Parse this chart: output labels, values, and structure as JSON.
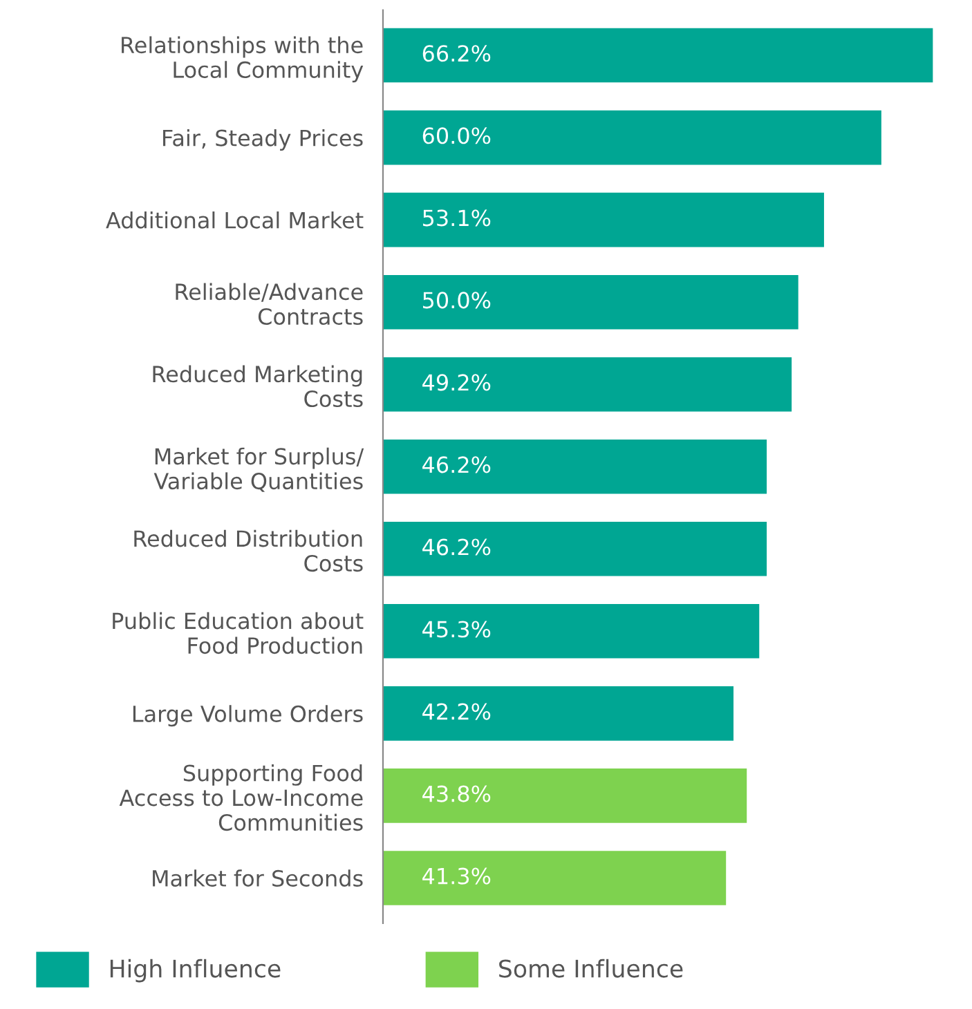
{
  "chart_data": {
    "type": "bar",
    "orientation": "horizontal",
    "categories": [
      "Relationships with the\nLocal Community",
      "Fair, Steady Prices",
      "Additional Local Market",
      "Reliable/Advance\nContracts",
      "Reduced Marketing\nCosts",
      "Market for Surplus/\nVariable Quantities",
      "Reduced Distribution\nCosts",
      "Public Education about\nFood Production",
      "Large Volume Orders",
      "Supporting Food\nAccess to Low-Income\nCommunities",
      "Market for Seconds"
    ],
    "series": [
      {
        "name": "High Influence",
        "color": "#00a693",
        "values": [
          66.2,
          60.0,
          53.1,
          50.0,
          49.2,
          46.2,
          46.2,
          45.3,
          42.2,
          null,
          null
        ],
        "value_labels": [
          "66.2%",
          "60.0%",
          "53.1%",
          "50.0%",
          "49.2%",
          "46.2%",
          "46.2%",
          "45.3%",
          "42.2%",
          null,
          null
        ]
      },
      {
        "name": "Some Influence",
        "color": "#7ed24f",
        "values": [
          null,
          null,
          null,
          null,
          null,
          null,
          null,
          null,
          null,
          43.8,
          41.3
        ],
        "value_labels": [
          null,
          null,
          null,
          null,
          null,
          null,
          null,
          null,
          null,
          "43.8%",
          "41.3%"
        ]
      }
    ],
    "legend": "bottom",
    "grid": false
  }
}
